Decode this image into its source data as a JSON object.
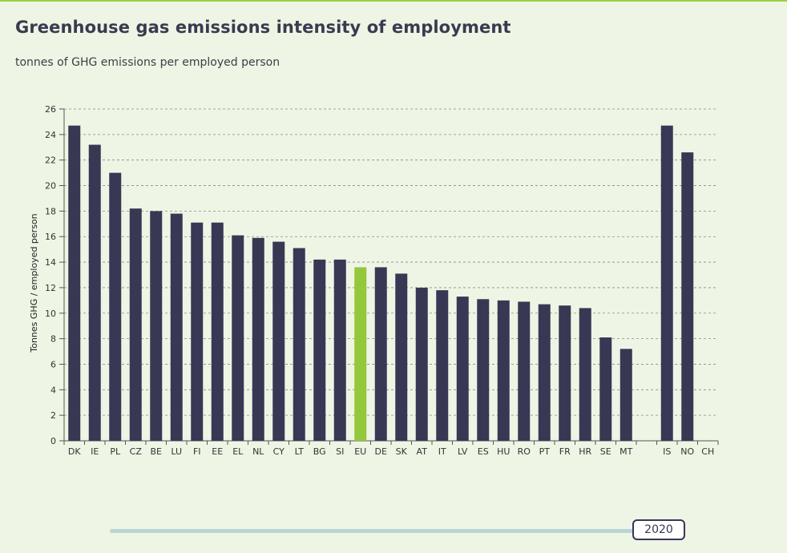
{
  "header": {
    "title": "Greenhouse gas emissions intensity of employment",
    "subtitle": "tonnes of GHG emissions per employed person"
  },
  "slider": {
    "year": "2020"
  },
  "colors": {
    "bar": "#383854",
    "highlight": "#93c83a",
    "background": "#eef5e4",
    "accent": "#9bd03c"
  },
  "chart_data": {
    "type": "bar",
    "title": "Greenhouse gas emissions intensity of employment",
    "subtitle": "tonnes of GHG emissions per employed person",
    "ylabel": "Tonnes GHG / employed person",
    "xlabel": "",
    "ylim": [
      0,
      26
    ],
    "yticks": [
      0,
      2,
      4,
      6,
      8,
      10,
      12,
      14,
      16,
      18,
      20,
      22,
      24,
      26
    ],
    "grid": true,
    "categories": [
      "DK",
      "IE",
      "PL",
      "CZ",
      "BE",
      "LU",
      "FI",
      "EE",
      "EL",
      "NL",
      "CY",
      "LT",
      "BG",
      "SI",
      "EU",
      "DE",
      "SK",
      "AT",
      "IT",
      "LV",
      "ES",
      "HU",
      "RO",
      "PT",
      "FR",
      "HR",
      "SE",
      "MT",
      "",
      "IS",
      "NO",
      "CH"
    ],
    "values": [
      24.7,
      23.2,
      21.0,
      18.2,
      18.0,
      17.8,
      17.1,
      17.1,
      16.1,
      15.9,
      15.6,
      15.1,
      14.2,
      14.2,
      13.6,
      13.6,
      13.1,
      12.0,
      11.8,
      11.3,
      11.1,
      11.0,
      10.9,
      10.7,
      10.6,
      10.4,
      8.1,
      7.2,
      null,
      24.7,
      22.6,
      null
    ],
    "highlight": "EU"
  }
}
